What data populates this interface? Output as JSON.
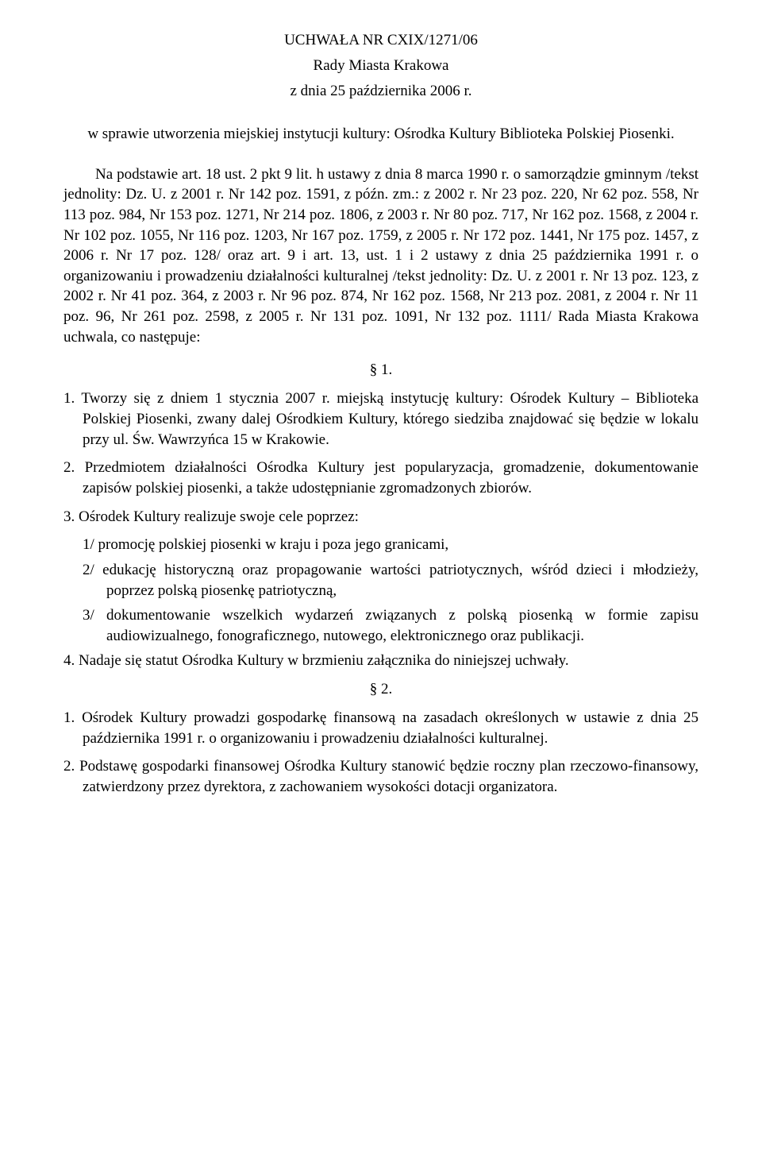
{
  "header": {
    "line1": "UCHWAŁA NR CXIX/1271/06",
    "line2": "Rady Miasta Krakowa",
    "line3": "z dnia 25 października 2006 r."
  },
  "subject": "w sprawie utworzenia miejskiej instytucji kultury: Ośrodka Kultury Biblioteka Polskiej Piosenki.",
  "preamble": "Na podstawie art. 18 ust. 2 pkt 9 lit. h ustawy z dnia 8 marca 1990 r. o samorządzie gminnym /tekst jednolity: Dz. U. z 2001 r. Nr 142 poz. 1591, z późn. zm.: z 2002 r. Nr 23 poz. 220, Nr 62 poz. 558, Nr 113 poz. 984, Nr 153 poz. 1271, Nr 214 poz. 1806, z 2003 r. Nr 80 poz. 717, Nr 162 poz. 1568, z 2004 r. Nr 102 poz. 1055, Nr 116 poz. 1203, Nr 167 poz. 1759, z 2005 r. Nr 172 poz. 1441, Nr 175 poz. 1457, z 2006 r. Nr 17 poz. 128/ oraz art. 9 i art. 13, ust. 1 i 2 ustawy z dnia 25 października 1991 r. o organizowaniu i prowadzeniu działalności kulturalnej /tekst jednolity: Dz. U. z 2001 r. Nr 13 poz. 123, z 2002 r. Nr 41 poz. 364, z 2003 r. Nr 96 poz. 874, Nr 162 poz. 1568, Nr 213 poz. 2081, z 2004 r. Nr 11 poz. 96, Nr 261 poz. 2598, z 2005 r. Nr 131 poz. 1091, Nr 132 poz. 1111/ Rada Miasta Krakowa uchwala, co następuje:",
  "section1": {
    "mark": "§ 1.",
    "p1": "1. Tworzy się z dniem 1 stycznia 2007 r. miejską instytucję kultury: Ośrodek Kultury – Biblioteka Polskiej Piosenki, zwany dalej Ośrodkiem Kultury, którego siedziba znajdować się będzie w lokalu przy ul. Św. Wawrzyńca 15 w Krakowie.",
    "p2": "2. Przedmiotem działalności Ośrodka Kultury jest popularyzacja, gromadzenie, dokumentowanie zapisów polskiej piosenki, a także udostępnianie zgromadzonych zbiorów.",
    "p3": "3. Ośrodek Kultury realizuje swoje cele poprzez:",
    "p3a": "1/ promocję polskiej piosenki w kraju i poza jego granicami,",
    "p3b": "2/ edukację historyczną oraz propagowanie wartości patriotycznych, wśród dzieci i młodzieży, poprzez polską piosenkę patriotyczną,",
    "p3c": "3/ dokumentowanie wszelkich wydarzeń związanych z polską piosenką w formie zapisu         audiowizualnego, fonograficznego, nutowego, elektronicznego oraz publikacji.",
    "p4": "4. Nadaje się statut Ośrodka Kultury w brzmieniu załącznika do niniejszej uchwały."
  },
  "section2": {
    "mark": "§ 2.",
    "p1": "1. Ośrodek Kultury prowadzi gospodarkę finansową na zasadach określonych w ustawie z dnia 25 października 1991 r. o organizowaniu i prowadzeniu działalności kulturalnej.",
    "p2": "2. Podstawę gospodarki finansowej Ośrodka Kultury stanowić będzie roczny plan rzeczowo-finansowy, zatwierdzony przez dyrektora, z zachowaniem wysokości dotacji organizatora."
  }
}
